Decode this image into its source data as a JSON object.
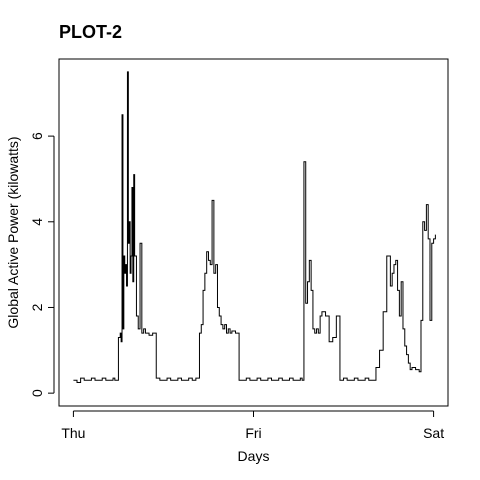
{
  "chart_data": {
    "type": "line",
    "title": "PLOT-2",
    "xlabel": "Days",
    "ylabel": "Global Active Power (kilowatts)",
    "x_ticks": [
      {
        "value": 0,
        "label": "Thu"
      },
      {
        "value": 1,
        "label": "Fri"
      },
      {
        "value": 2,
        "label": "Sat"
      }
    ],
    "y_ticks": [
      0,
      2,
      4,
      6
    ],
    "xlim": [
      -0.08,
      2.08
    ],
    "ylim": [
      -0.3,
      7.8
    ],
    "grid": false,
    "series": [
      {
        "color": "#000000",
        "x": [
          0.0,
          0.02,
          0.04,
          0.06,
          0.08,
          0.1,
          0.12,
          0.14,
          0.16,
          0.18,
          0.2,
          0.22,
          0.23,
          0.24,
          0.25,
          0.26,
          0.265,
          0.27,
          0.275,
          0.28,
          0.285,
          0.29,
          0.295,
          0.3,
          0.305,
          0.31,
          0.315,
          0.32,
          0.325,
          0.33,
          0.335,
          0.34,
          0.35,
          0.36,
          0.37,
          0.38,
          0.39,
          0.4,
          0.42,
          0.44,
          0.46,
          0.48,
          0.5,
          0.52,
          0.54,
          0.56,
          0.58,
          0.6,
          0.62,
          0.64,
          0.66,
          0.68,
          0.7,
          0.71,
          0.72,
          0.73,
          0.74,
          0.75,
          0.76,
          0.77,
          0.78,
          0.79,
          0.8,
          0.81,
          0.82,
          0.83,
          0.84,
          0.85,
          0.86,
          0.87,
          0.88,
          0.9,
          0.92,
          0.94,
          0.96,
          0.98,
          1.0,
          1.02,
          1.04,
          1.06,
          1.08,
          1.1,
          1.12,
          1.14,
          1.16,
          1.18,
          1.2,
          1.22,
          1.24,
          1.26,
          1.27,
          1.28,
          1.29,
          1.3,
          1.31,
          1.32,
          1.33,
          1.34,
          1.35,
          1.36,
          1.37,
          1.38,
          1.4,
          1.42,
          1.44,
          1.46,
          1.48,
          1.5,
          1.52,
          1.54,
          1.56,
          1.58,
          1.6,
          1.62,
          1.64,
          1.66,
          1.68,
          1.7,
          1.72,
          1.74,
          1.76,
          1.77,
          1.78,
          1.79,
          1.8,
          1.81,
          1.82,
          1.83,
          1.84,
          1.85,
          1.86,
          1.87,
          1.88,
          1.9,
          1.92,
          1.93,
          1.94,
          1.95,
          1.96,
          1.97,
          1.98,
          1.99,
          2.0,
          2.01
        ],
        "y": [
          0.3,
          0.25,
          0.35,
          0.3,
          0.3,
          0.35,
          0.3,
          0.3,
          0.35,
          0.3,
          0.3,
          0.35,
          0.3,
          0.3,
          1.3,
          1.4,
          1.2,
          6.5,
          1.5,
          3.2,
          2.8,
          3.0,
          2.5,
          7.5,
          3.5,
          4.0,
          2.8,
          3.2,
          4.8,
          2.6,
          5.1,
          3.2,
          1.8,
          1.5,
          3.5,
          1.4,
          1.5,
          1.4,
          1.35,
          1.4,
          0.35,
          0.3,
          0.3,
          0.35,
          0.3,
          0.3,
          0.35,
          0.3,
          0.3,
          0.35,
          0.3,
          0.35,
          1.4,
          1.6,
          2.4,
          2.8,
          3.3,
          3.1,
          3.0,
          4.5,
          2.8,
          3.0,
          2.0,
          1.8,
          1.6,
          1.5,
          1.6,
          1.4,
          1.5,
          1.4,
          1.45,
          1.4,
          0.3,
          0.3,
          0.35,
          0.3,
          0.3,
          0.35,
          0.3,
          0.3,
          0.35,
          0.3,
          0.3,
          0.35,
          0.3,
          0.3,
          0.35,
          0.3,
          0.3,
          0.35,
          0.3,
          5.4,
          2.1,
          2.6,
          3.1,
          2.4,
          1.5,
          1.4,
          1.5,
          1.4,
          1.8,
          1.9,
          1.8,
          1.2,
          1.3,
          1.8,
          0.3,
          0.35,
          0.3,
          0.3,
          0.35,
          0.3,
          0.3,
          0.35,
          0.3,
          0.3,
          0.6,
          1.0,
          1.9,
          3.2,
          2.5,
          2.8,
          3.0,
          3.1,
          2.4,
          1.8,
          2.6,
          1.5,
          1.1,
          0.9,
          0.7,
          0.55,
          0.6,
          0.55,
          0.5,
          1.7,
          4.0,
          3.8,
          4.4,
          3.6,
          1.7,
          3.5,
          3.6,
          3.7
        ]
      }
    ]
  }
}
